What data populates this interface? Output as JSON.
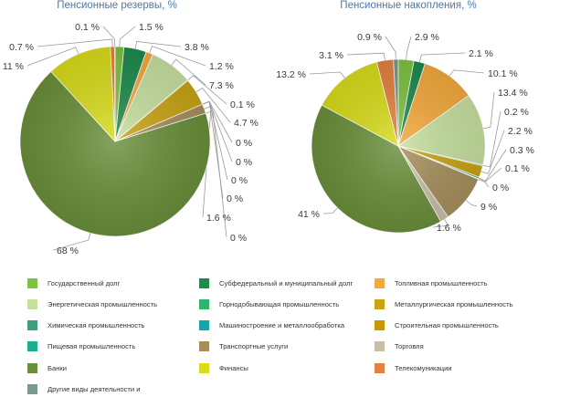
{
  "chart_data": [
    {
      "type": "pie",
      "title": "Пенсионные резервы, %",
      "unit": "%",
      "slices": [
        {
          "category": "Государственный долг",
          "label": "1.5 %",
          "value": 1.5
        },
        {
          "category": "Субфедеральный и муниципальный долг",
          "label": "3.8 %",
          "value": 3.8
        },
        {
          "category": "Топливная промышленность",
          "label": "1.2 %",
          "value": 1.2
        },
        {
          "category": "Энергетическая промышленность",
          "label": "7.3 %",
          "value": 7.3
        },
        {
          "category": "Горнодобывающая промышленность",
          "label": "0.1 %",
          "value": 0.1
        },
        {
          "category": "Металлургическая промышленность",
          "label": "4.7 %",
          "value": 4.7
        },
        {
          "category": "Химическая промышленность",
          "label": "0 %",
          "value": 0
        },
        {
          "category": "Машиностроение и металлообработка",
          "label": "0 %",
          "value": 0
        },
        {
          "category": "Строительная промышленность",
          "label": "0 %",
          "value": 0
        },
        {
          "category": "Пищевая промышленность",
          "label": "0 %",
          "value": 0
        },
        {
          "category": "Транспортные услуги",
          "label": "1.6 %",
          "value": 1.6
        },
        {
          "category": "Торговля",
          "label": "0 %",
          "value": 0
        },
        {
          "category": "Банки",
          "label": "68 %",
          "value": 68
        },
        {
          "category": "Финансы",
          "label": "11 %",
          "value": 11
        },
        {
          "category": "Телекомуникации",
          "label": "0.7 %",
          "value": 0.7
        },
        {
          "category": "Другие виды деятельности и",
          "label": "0.1 %",
          "value": 0.1
        }
      ]
    },
    {
      "type": "pie",
      "title": "Пенсионные накопления, %",
      "unit": "%",
      "slices": [
        {
          "category": "Государственный долг",
          "label": "2.9 %",
          "value": 2.9
        },
        {
          "category": "Субфедеральный и муниципальный долг",
          "label": "2.1 %",
          "value": 2.1
        },
        {
          "category": "Топливная промышленность",
          "label": "10.1 %",
          "value": 10.1
        },
        {
          "category": "Энергетическая промышленность",
          "label": "13.4 %",
          "value": 13.4
        },
        {
          "category": "Горнодобывающая промышленность",
          "label": "0.2 %",
          "value": 0.2
        },
        {
          "category": "Металлургическая промышленность",
          "label": "2.2 %",
          "value": 2.2
        },
        {
          "category": "Химическая промышленность",
          "label": "0.3 %",
          "value": 0.3
        },
        {
          "category": "Машиностроение и металлообработка",
          "label": "0.1 %",
          "value": 0.1
        },
        {
          "category": "Строительная промышленность",
          "label": "0 %",
          "value": 0
        },
        {
          "category": "Транспортные услуги",
          "label": "9 %",
          "value": 9
        },
        {
          "category": "Торговля",
          "label": "1.6 %",
          "value": 1.6
        },
        {
          "category": "Банки",
          "label": "41 %",
          "value": 41
        },
        {
          "category": "Финансы",
          "label": "13.2 %",
          "value": 13.2
        },
        {
          "category": "Телекомуникации",
          "label": "3.1 %",
          "value": 3.1
        },
        {
          "category": "Другие виды деятельности и",
          "label": "0.9 %",
          "value": 0.9
        }
      ]
    }
  ],
  "legend": {
    "items": [
      {
        "label": "Государственный долг",
        "color": "#7dc242"
      },
      {
        "label": "Субфедеральный и муниципальный долг",
        "color": "#1e8a4c"
      },
      {
        "label": "Топливная промышленность",
        "color": "#f4a93c"
      },
      {
        "label": "Энергетическая промышленность",
        "color": "#c6e0a0"
      },
      {
        "label": "Горнодобывающая промышленность",
        "color": "#2fb56a"
      },
      {
        "label": "Металлургическая промышленность",
        "color": "#c9a313"
      },
      {
        "label": "Химическая промышленность",
        "color": "#3ea07a"
      },
      {
        "label": "Машиностроение и металлообработка",
        "color": "#17a6a8"
      },
      {
        "label": "Строительная промышленность",
        "color": "#c99700"
      },
      {
        "label": "Пищевая промышленность",
        "color": "#1cae8c"
      },
      {
        "label": "Транспортные услуги",
        "color": "#a68f5c"
      },
      {
        "label": "Торговля",
        "color": "#c7bfa8"
      },
      {
        "label": "Банки",
        "color": "#6a8f3a"
      },
      {
        "label": "Финансы",
        "color": "#d8dc1a"
      },
      {
        "label": "Телекомуникации",
        "color": "#e4813f"
      },
      {
        "label": "Другие виды деятельности и",
        "color": "#7a9a90"
      }
    ]
  }
}
